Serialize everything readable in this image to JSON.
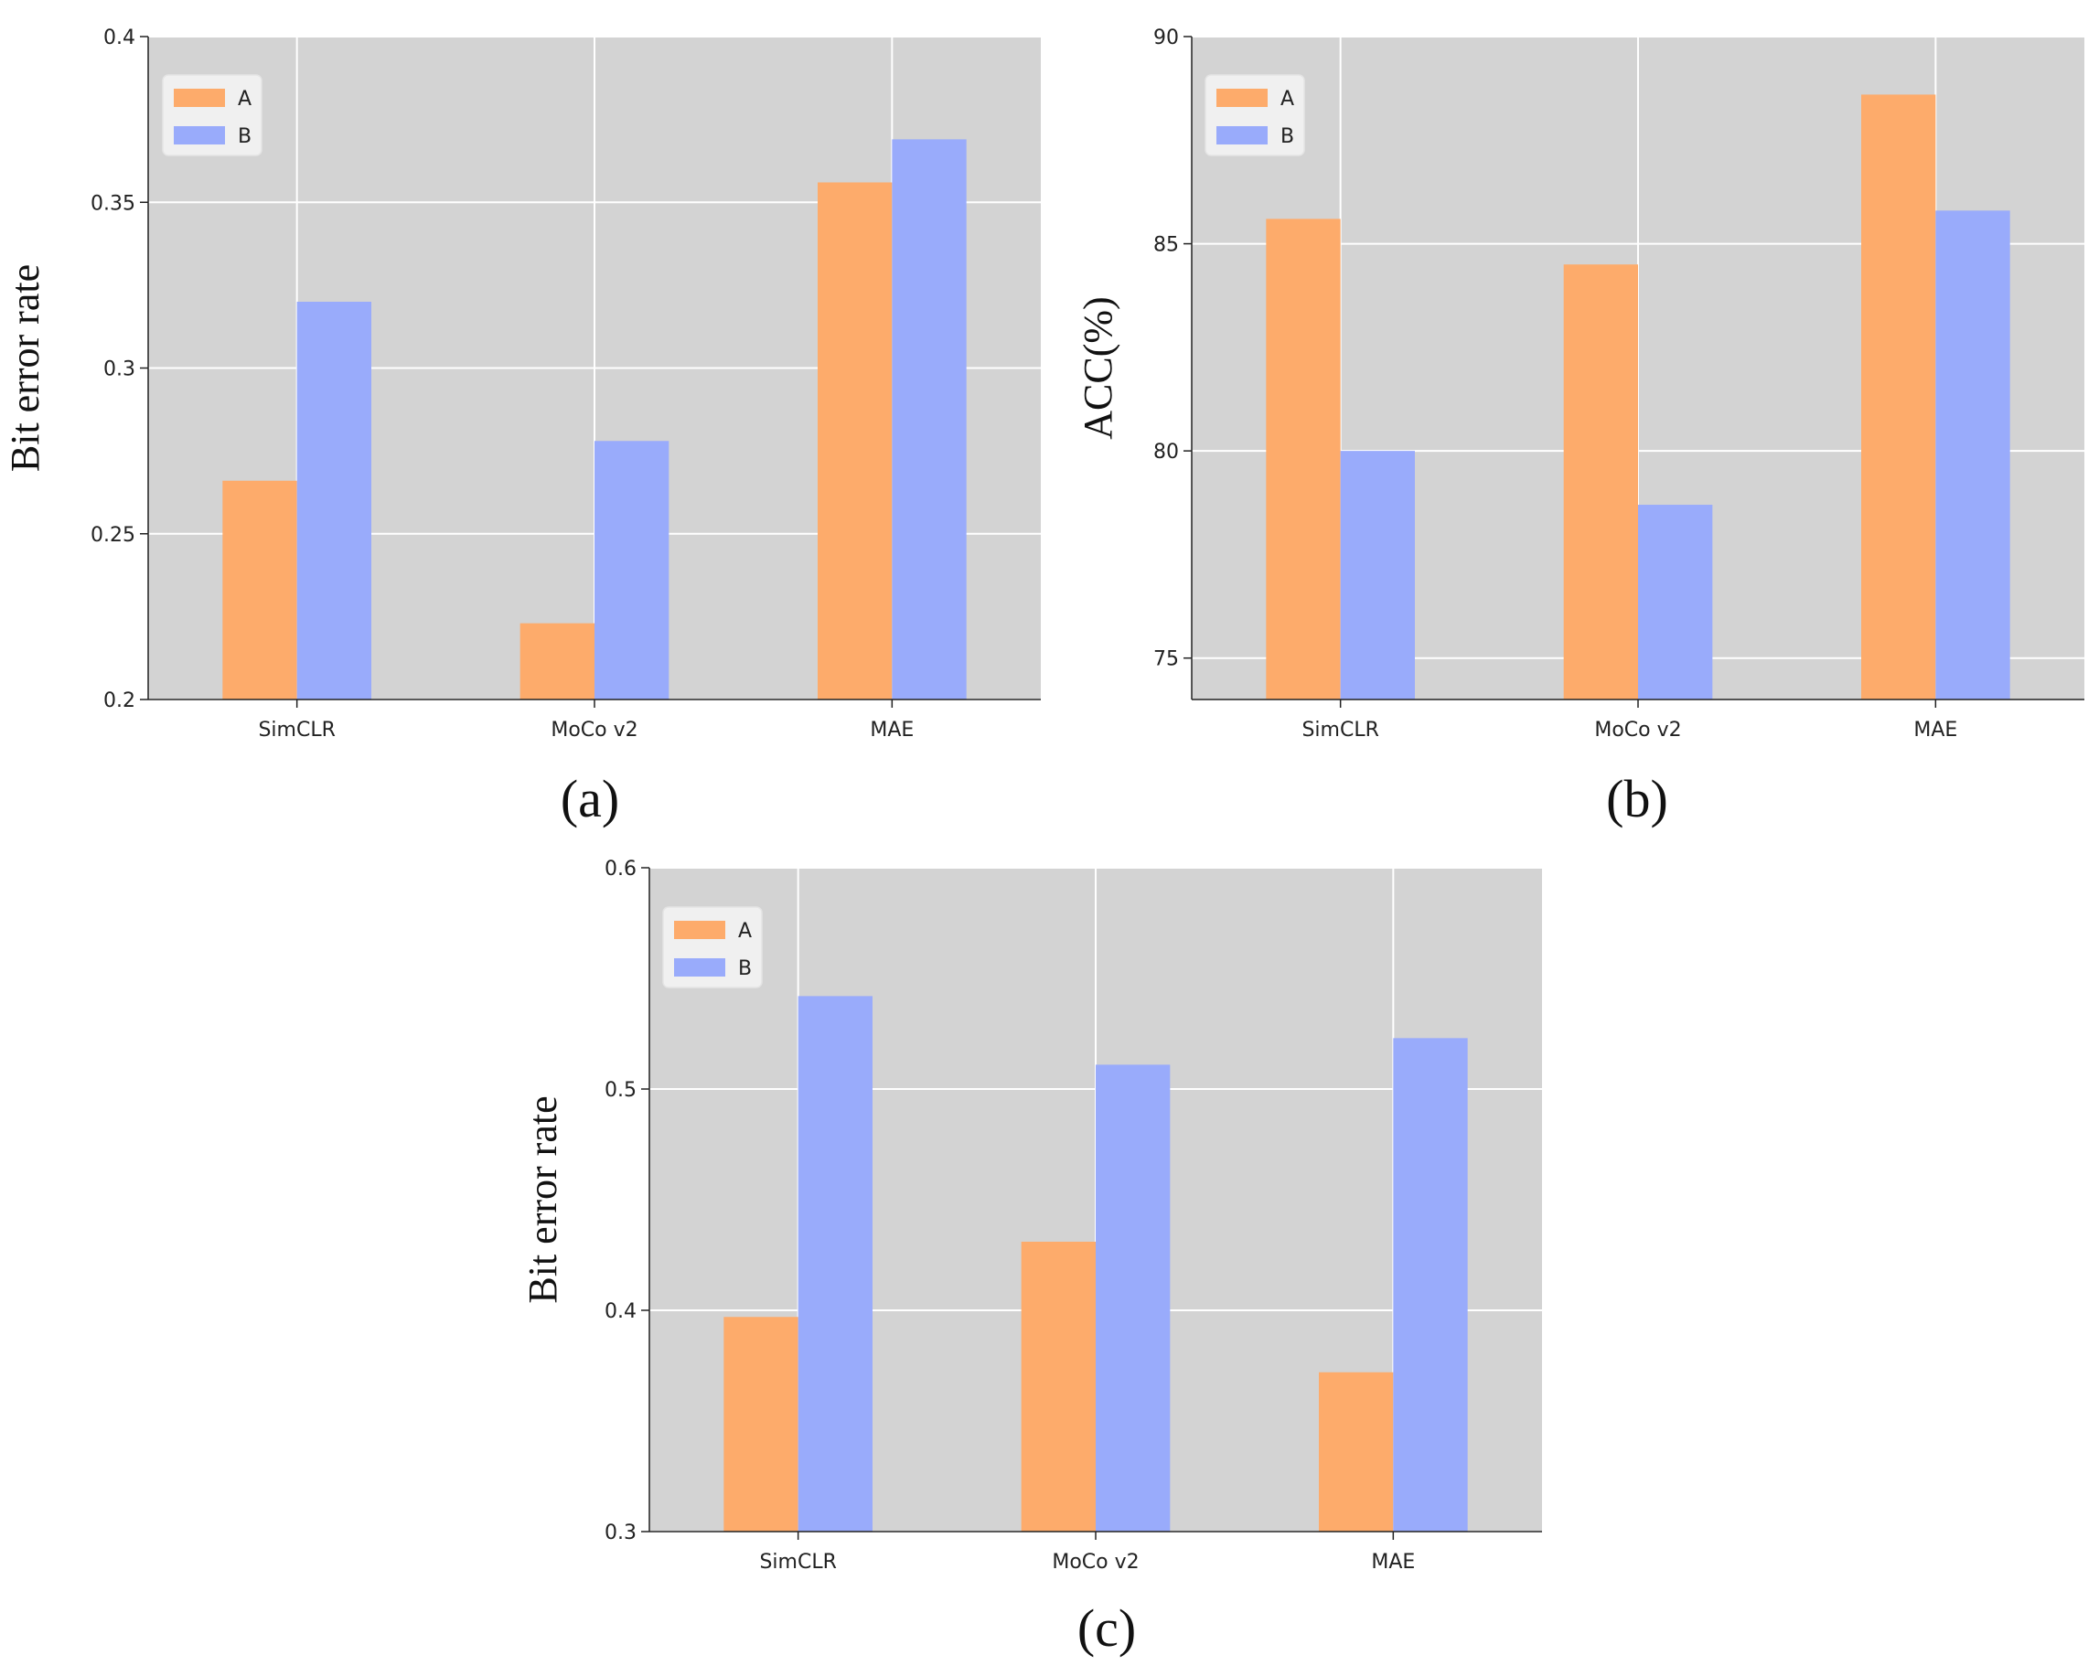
{
  "chart_data": [
    {
      "type": "bar",
      "caption": "(a)",
      "categories": [
        "SimCLR",
        "MoCo v2",
        "MAE"
      ],
      "series": [
        {
          "name": "A",
          "color": "#fdab6b",
          "values": [
            0.266,
            0.223,
            0.356
          ]
        },
        {
          "name": "B",
          "color": "#99abfb",
          "values": [
            0.32,
            0.278,
            0.369
          ]
        }
      ],
      "ylabel": "Bit error rate",
      "xlabel": "",
      "ylim": [
        0.2,
        0.4
      ],
      "yticks": [
        0.2,
        0.25,
        0.3,
        0.35,
        0.4
      ],
      "ytick_labels": [
        "0.2",
        "0.25",
        "0.3",
        "0.35",
        "0.4"
      ],
      "grid": true,
      "legend_position": "top-left"
    },
    {
      "type": "bar",
      "caption": "(b)",
      "categories": [
        "SimCLR",
        "MoCo v2",
        "MAE"
      ],
      "series": [
        {
          "name": "A",
          "color": "#fdab6b",
          "values": [
            85.6,
            84.5,
            88.6
          ]
        },
        {
          "name": "B",
          "color": "#99abfb",
          "values": [
            80.0,
            78.7,
            85.8
          ]
        }
      ],
      "ylabel": "ACC(%)",
      "xlabel": "",
      "ylim": [
        74,
        90
      ],
      "yticks": [
        75,
        80,
        85,
        90
      ],
      "ytick_labels": [
        "75",
        "80",
        "85",
        "90"
      ],
      "grid": true,
      "legend_position": "top-left"
    },
    {
      "type": "bar",
      "caption": "(c)",
      "categories": [
        "SimCLR",
        "MoCo v2",
        "MAE"
      ],
      "series": [
        {
          "name": "A",
          "color": "#fdab6b",
          "values": [
            0.397,
            0.431,
            0.372
          ]
        },
        {
          "name": "B",
          "color": "#99abfb",
          "values": [
            0.542,
            0.511,
            0.523
          ]
        }
      ],
      "ylabel": "Bit error rate",
      "xlabel": "",
      "ylim": [
        0.3,
        0.6
      ],
      "yticks": [
        0.3,
        0.4,
        0.5,
        0.6
      ],
      "ytick_labels": [
        "0.3",
        "0.4",
        "0.5",
        "0.6"
      ],
      "grid": true,
      "legend_position": "top-left"
    }
  ]
}
